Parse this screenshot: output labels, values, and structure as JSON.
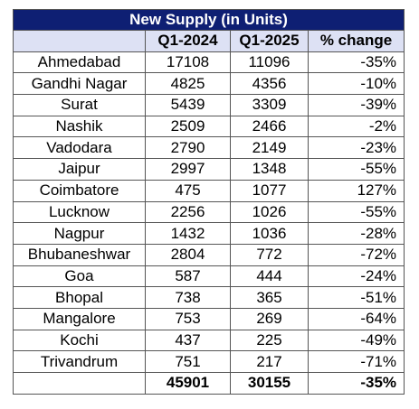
{
  "table": {
    "title": "New Supply (in Units)",
    "columns": [
      "Q1-2024",
      "Q1-2025",
      "% change"
    ],
    "rows": [
      [
        "Ahmedabad",
        17108,
        11096,
        "-35%"
      ],
      [
        "Gandhi Nagar",
        4825,
        4356,
        "-10%"
      ],
      [
        "Surat",
        5439,
        3309,
        "-39%"
      ],
      [
        "Nashik",
        2509,
        2466,
        "-2%"
      ],
      [
        "Vadodara",
        2790,
        2149,
        "-23%"
      ],
      [
        "Jaipur",
        2997,
        1348,
        "-55%"
      ],
      [
        "Coimbatore",
        475,
        1077,
        "127%"
      ],
      [
        "Lucknow",
        2256,
        1026,
        "-55%"
      ],
      [
        "Nagpur",
        1432,
        1036,
        "-28%"
      ],
      [
        "Bhubaneshwar",
        2804,
        772,
        "-72%"
      ],
      [
        "Goa",
        587,
        444,
        "-24%"
      ],
      [
        "Bhopal",
        738,
        365,
        "-51%"
      ],
      [
        "Mangalore",
        753,
        269,
        "-64%"
      ],
      [
        "Kochi",
        437,
        225,
        "-49%"
      ],
      [
        "Trivandrum",
        751,
        217,
        "-71%"
      ]
    ],
    "total": [
      45901,
      30155,
      "-35%"
    ]
  }
}
